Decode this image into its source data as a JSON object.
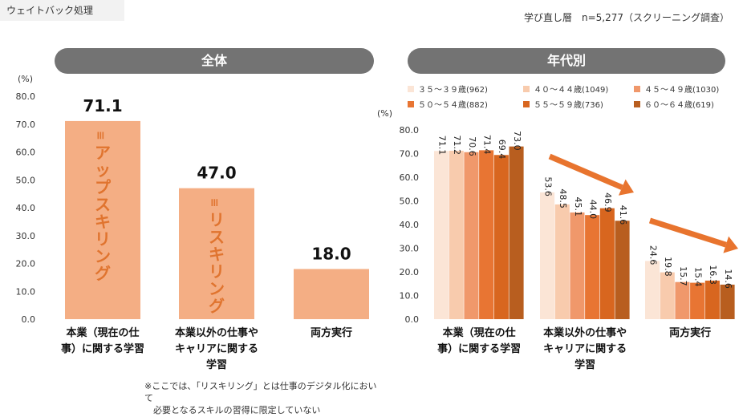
{
  "header": {
    "tag": "ウェイトバック処理",
    "subtitle": "学び直し層　n=5,277（スクリーニング調査）"
  },
  "note": "※ここでは、「リスキリング」とは仕事のデジタル化において\n　必要となるスキルの習得に限定していない",
  "colors": {
    "pill": "#737373",
    "left_bar": "#f4ae84",
    "bar_label_text": "#e0742f",
    "arrow": "#e8742e",
    "series": [
      "#fbe5d6",
      "#f8cbad",
      "#f0986b",
      "#e87533",
      "#d8661f",
      "#b85e1f"
    ]
  },
  "chart_data": [
    {
      "type": "bar",
      "title": "全体",
      "ylabel": "(%)",
      "ylim": [
        0,
        80
      ],
      "yticks": [
        "0.0",
        "10.0",
        "20.0",
        "30.0",
        "40.0",
        "50.0",
        "60.0",
        "70.0",
        "80.0"
      ],
      "grid": false,
      "categories": [
        "本業（現在の仕事）に関する学習",
        "本業以外の仕事やキャリアに関する学習",
        "両方実行"
      ],
      "category_lines": [
        [
          "本業（現在の仕",
          "事）に関する学習"
        ],
        [
          "本業以外の仕事や",
          "キャリアに関する",
          "学習"
        ],
        [
          "両方実行"
        ]
      ],
      "values": [
        71.1,
        47.0,
        18.0
      ],
      "value_labels": [
        "71.1",
        "47.0",
        "18.0"
      ],
      "bar_text": [
        "≡アップスキリング",
        "≡リスキリング",
        ""
      ]
    },
    {
      "type": "bar",
      "title": "年代別",
      "ylabel": "(%)",
      "ylim": [
        0,
        80
      ],
      "yticks": [
        "0.0",
        "10.0",
        "20.0",
        "30.0",
        "40.0",
        "50.0",
        "60.0",
        "70.0",
        "80.0"
      ],
      "grid": false,
      "legend_position": "top",
      "categories": [
        "本業（現在の仕事）に関する学習",
        "本業以外の仕事やキャリアに関する学習",
        "両方実行"
      ],
      "category_lines": [
        [
          "本業（現在の仕",
          "事）に関する学習"
        ],
        [
          "本業以外の仕事や",
          "キャリアに関する",
          "学習"
        ],
        [
          "両方実行"
        ]
      ],
      "series": [
        {
          "name": "３５～３９歳(962)",
          "values": [
            71.1,
            53.6,
            24.6
          ]
        },
        {
          "name": "４０～４４歳(1049)",
          "values": [
            71.2,
            48.5,
            19.8
          ]
        },
        {
          "name": "４５～４９歳(1030)",
          "values": [
            70.6,
            45.1,
            15.7
          ]
        },
        {
          "name": "５０～５４歳(882)",
          "values": [
            71.4,
            44.0,
            15.4
          ]
        },
        {
          "name": "５５～５９歳(736)",
          "values": [
            69.4,
            46.9,
            16.3
          ]
        },
        {
          "name": "６０～６４歳(619)",
          "values": [
            73.0,
            41.6,
            14.6
          ]
        }
      ],
      "value_labels": [
        [
          "71.1",
          "71.2",
          "70.6",
          "71.4",
          "69.4",
          "73.0"
        ],
        [
          "53.6",
          "48.5",
          "45.1",
          "44.0",
          "46.9",
          "41.6"
        ],
        [
          "24.6",
          "19.8",
          "15.7",
          "15.4",
          "16.3",
          "14.6"
        ]
      ]
    }
  ]
}
